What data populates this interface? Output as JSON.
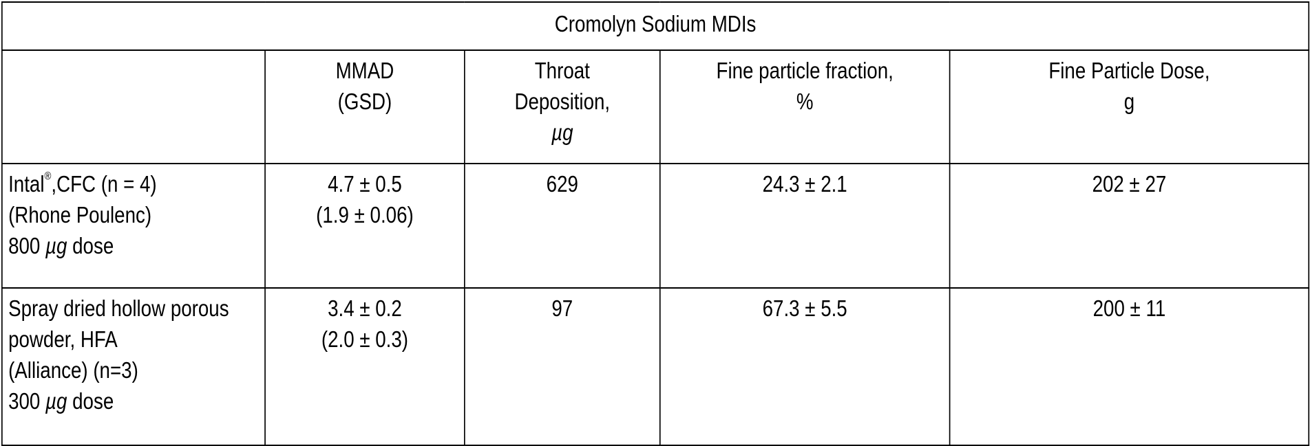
{
  "table": {
    "title": "Cromolyn Sodium MDIs",
    "headers": [
      {
        "lines": [
          ""
        ]
      },
      {
        "lines": [
          "MMAD",
          "(GSD)"
        ]
      },
      {
        "lines": [
          "Throat",
          "Deposition,",
          "µg"
        ]
      },
      {
        "lines": [
          "Fine particle fraction,",
          "%"
        ]
      },
      {
        "lines": [
          "Fine Particle Dose,",
          "g"
        ]
      }
    ],
    "rows": [
      {
        "label": {
          "name_prefix": "Intal",
          "name_mark": "®",
          "name_suffix": ",CFC (n = 4)",
          "maker": "(Rhone Poulenc)",
          "dose_value": "800",
          "dose_unit": "µg",
          "dose_word": "dose"
        },
        "mmad": "4.7 ± 0.5",
        "gsd": "(1.9 ± 0.06)",
        "throat": "629",
        "fpf": "24.3 ± 2.1",
        "fpd": "202 ± 27"
      },
      {
        "label": {
          "line1": "Spray dried hollow porous",
          "line2": "powder, HFA",
          "line3": "(Alliance) (n=3)",
          "dose_value": "300",
          "dose_unit": "µg",
          "dose_word": "dose"
        },
        "mmad": "3.4 ± 0.2",
        "gsd": "(2.0 ± 0.3)",
        "throat": "97",
        "fpf": "67.3 ± 5.5",
        "fpd": "200 ± 11"
      }
    ]
  }
}
